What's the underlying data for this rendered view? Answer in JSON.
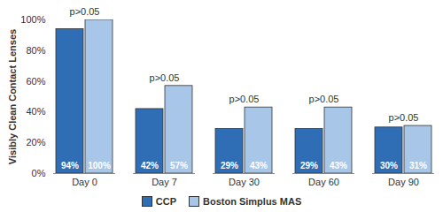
{
  "chart_data": {
    "type": "bar",
    "categories": [
      "Day 0",
      "Day 7",
      "Day 30",
      "Day 60",
      "Day 90"
    ],
    "series": [
      {
        "name": "CCP",
        "color": "#2f6db5",
        "values": [
          94,
          42,
          29,
          29,
          30
        ],
        "value_labels": [
          "94%",
          "42%",
          "29%",
          "29%",
          "30%"
        ]
      },
      {
        "name": "Boston Simplus MAS",
        "color": "#a8c7e8",
        "values": [
          100,
          57,
          43,
          43,
          31
        ],
        "value_labels": [
          "100%",
          "57%",
          "43%",
          "43%",
          "31%"
        ]
      }
    ],
    "ylabel": "Visibly Clean Contact Lenses",
    "ylim": [
      0,
      100
    ],
    "yticks": [
      {
        "value": 0,
        "label": "0%"
      },
      {
        "value": 20,
        "label": "20%"
      },
      {
        "value": 40,
        "label": "40%"
      },
      {
        "value": 60,
        "label": "60%"
      },
      {
        "value": 80,
        "label": "80%"
      },
      {
        "value": 100,
        "label": "100%"
      }
    ],
    "annotations": [
      {
        "category": "Day 0",
        "text": "p>0.05"
      },
      {
        "category": "Day 7",
        "text": "p>0.05"
      },
      {
        "category": "Day 30",
        "text": "p>0.05"
      },
      {
        "category": "Day 60",
        "text": "p>0.05"
      },
      {
        "category": "Day 90",
        "text": "p>0.05"
      }
    ],
    "data_labels": true,
    "grid": false,
    "legend": "bottom"
  }
}
